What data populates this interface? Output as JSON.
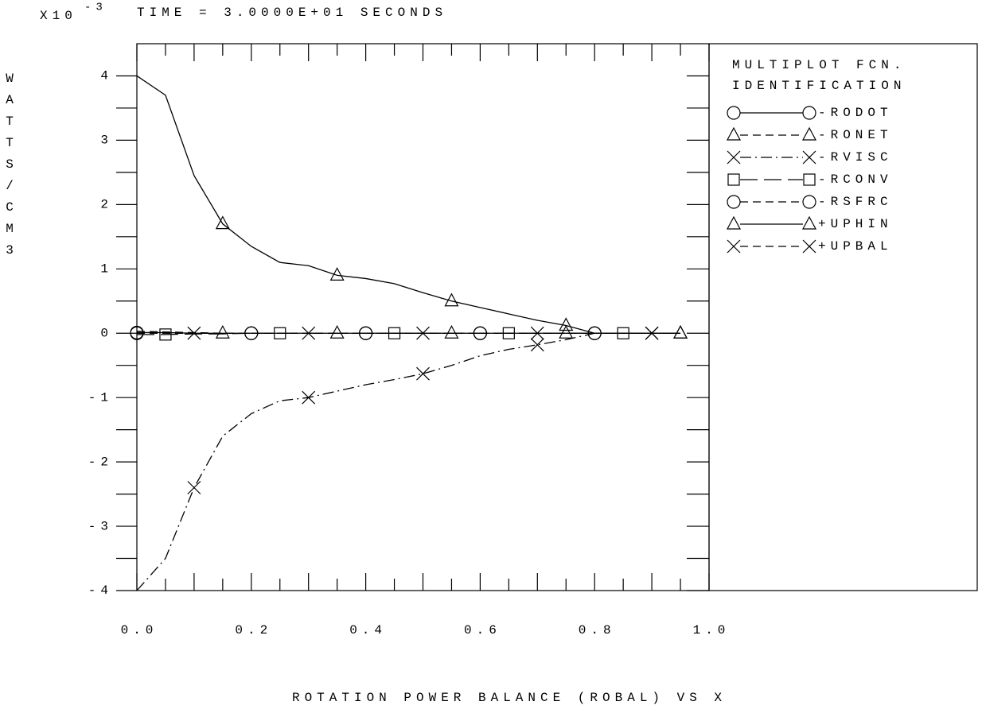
{
  "chart_data": {
    "type": "line",
    "title": "TIME = 3.0000E+01 SECONDS",
    "y_multiplier": "X10",
    "y_exponent": "-3",
    "y_label": "WATTS/CM3",
    "x_label": "ROTATION POWER BALANCE (ROBAL) VS X",
    "legend_title": [
      "MULTIPLOT FCN.",
      "IDENTIFICATION"
    ],
    "legend_position": "right",
    "xlim": [
      0,
      1.0
    ],
    "ylim": [
      -4,
      4.5
    ],
    "xticks": [
      {
        "value": 0,
        "label": "0.0"
      },
      0.2,
      0.4,
      0.6,
      0.8,
      {
        "value": 1,
        "label": "1.0"
      }
    ],
    "yticks": [
      -4,
      -3,
      -2,
      -1,
      0,
      1,
      2,
      3,
      4
    ],
    "x": [
      0,
      0.05,
      0.1,
      0.15,
      0.2,
      0.25,
      0.3,
      0.35,
      0.4,
      0.45,
      0.5,
      0.55,
      0.6,
      0.65,
      0.7,
      0.75,
      0.8,
      0.85,
      0.9,
      0.95
    ],
    "series": [
      {
        "name": "-RODOT",
        "color": "#000000",
        "dash": "solid",
        "marker": "circle",
        "values": [
          0.01,
          0.01,
          0.0,
          0.0,
          0.0,
          0.0,
          0.0,
          0.0,
          0.0,
          0.0,
          0.0,
          0.0,
          0.0,
          0.0,
          0.0,
          0.0,
          0.0,
          0.0,
          0.0,
          0.0
        ]
      },
      {
        "name": "-RONET",
        "color": "#000000",
        "dash": "dashed",
        "marker": "triangle",
        "values": [
          0.03,
          0.02,
          0.01,
          0.0,
          0.0,
          0.0,
          0.0,
          0.0,
          0.0,
          0.0,
          0.0,
          0.0,
          0.0,
          0.0,
          0.0,
          0.0,
          0.0,
          0.0,
          0.0,
          0.0
        ]
      },
      {
        "name": "-RVISC",
        "color": "#000000",
        "dash": "dashdot",
        "marker": "x",
        "values": [
          -4.0,
          -3.5,
          -2.4,
          -1.6,
          -1.25,
          -1.05,
          -1.0,
          -0.9,
          -0.8,
          -0.72,
          -0.63,
          -0.5,
          -0.35,
          -0.25,
          -0.18,
          -0.1,
          0.0,
          0.0,
          0.0,
          0.0
        ]
      },
      {
        "name": "-RCONV",
        "color": "#000000",
        "dash": "longdash",
        "marker": "square",
        "values": [
          -0.02,
          -0.02,
          -0.01,
          -0.01,
          0.0,
          0.0,
          0.0,
          0.0,
          0.0,
          0.0,
          0.0,
          0.0,
          0.0,
          0.0,
          0.0,
          0.0,
          0.0,
          0.0,
          0.0,
          0.0
        ]
      },
      {
        "name": "-RSFRC",
        "color": "#000000",
        "dash": "dashed",
        "marker": "circle",
        "values": [
          0.0,
          0.0,
          0.0,
          0.0,
          0.0,
          0.0,
          0.0,
          0.0,
          0.0,
          0.0,
          0.0,
          0.0,
          0.0,
          0.0,
          0.0,
          0.0,
          0.0,
          0.0,
          0.0,
          0.0
        ]
      },
      {
        "name": "+UPHIN",
        "color": "#000000",
        "dash": "solid",
        "marker": "triangle",
        "values": [
          4.0,
          3.7,
          2.45,
          1.7,
          1.35,
          1.1,
          1.05,
          0.9,
          0.85,
          0.77,
          0.63,
          0.5,
          0.4,
          0.3,
          0.2,
          0.12,
          0.0,
          0.0,
          0.0,
          0.0
        ]
      },
      {
        "name": "+UPBAL",
        "color": "#000000",
        "dash": "dashed",
        "marker": "x",
        "values": [
          0.0,
          0.0,
          0.0,
          0.0,
          0.0,
          0.0,
          0.0,
          0.0,
          0.0,
          0.0,
          0.0,
          0.0,
          0.0,
          0.0,
          0.0,
          0.0,
          0.0,
          0.0,
          0.0,
          0.0
        ]
      }
    ]
  }
}
